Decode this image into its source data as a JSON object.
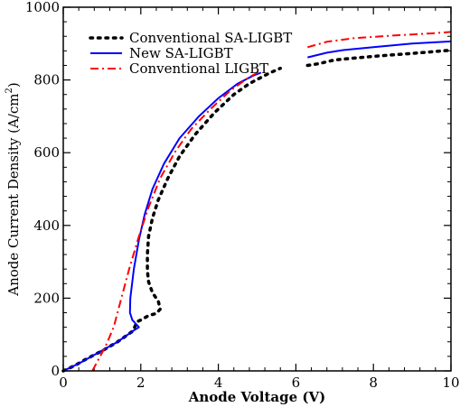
{
  "chart_data": {
    "type": "line",
    "title": "",
    "xlabel": "Anode Voltage (V)",
    "ylabel": "Anode Current Density (A/cm",
    "ylabel_sup": "2",
    "ylabel_close": ")",
    "xlim": [
      0,
      10
    ],
    "ylim": [
      0,
      1000
    ],
    "xticks": [
      0,
      2,
      4,
      6,
      8,
      10
    ],
    "yticks": [
      0,
      200,
      400,
      600,
      800,
      1000
    ],
    "grid": false,
    "legend_position": "top-left",
    "series": [
      {
        "name": "Conventional SA-LIGBT",
        "color": "#000000",
        "style": "dotted",
        "points": [
          [
            0,
            0
          ],
          [
            0.3,
            15
          ],
          [
            0.6,
            33
          ],
          [
            1.0,
            55
          ],
          [
            1.4,
            80
          ],
          [
            1.8,
            110
          ],
          [
            1.9,
            135
          ],
          [
            2.0,
            140
          ],
          [
            2.2,
            152
          ],
          [
            2.4,
            158
          ],
          [
            2.5,
            170
          ],
          [
            2.45,
            192
          ],
          [
            2.3,
            215
          ],
          [
            2.2,
            245
          ],
          [
            2.17,
            275
          ],
          [
            2.17,
            320
          ],
          [
            2.2,
            370
          ],
          [
            2.3,
            420
          ],
          [
            2.45,
            470
          ],
          [
            2.7,
            530
          ],
          [
            3.0,
            590
          ],
          [
            3.4,
            650
          ],
          [
            3.9,
            710
          ],
          [
            4.4,
            760
          ],
          [
            4.8,
            790
          ],
          [
            5.3,
            818
          ],
          [
            5.6,
            832
          ]
        ],
        "points2": [
          [
            6.3,
            840
          ],
          [
            6.6,
            845
          ],
          [
            7.0,
            855
          ],
          [
            8.0,
            865
          ],
          [
            9.0,
            873
          ],
          [
            10.0,
            882
          ]
        ]
      },
      {
        "name": "New SA-LIGBT",
        "color": "#0000ff",
        "style": "solid",
        "points": [
          [
            0,
            0
          ],
          [
            0.4,
            20
          ],
          [
            0.9,
            50
          ],
          [
            1.4,
            80
          ],
          [
            1.8,
            110
          ],
          [
            1.95,
            120
          ],
          [
            1.78,
            140
          ],
          [
            1.72,
            160
          ],
          [
            1.73,
            200
          ],
          [
            1.82,
            280
          ],
          [
            1.95,
            360
          ],
          [
            2.1,
            430
          ],
          [
            2.3,
            500
          ],
          [
            2.6,
            570
          ],
          [
            3.0,
            640
          ],
          [
            3.5,
            700
          ],
          [
            4.0,
            750
          ],
          [
            4.5,
            790
          ],
          [
            4.9,
            812
          ],
          [
            5.1,
            820
          ]
        ],
        "points2": [
          [
            6.3,
            862
          ],
          [
            6.8,
            875
          ],
          [
            7.2,
            882
          ],
          [
            8.0,
            890
          ],
          [
            9.0,
            900
          ],
          [
            10.0,
            906
          ]
        ]
      },
      {
        "name": "Conventional LIGBT",
        "color": "#ff0000",
        "style": "dashdot",
        "points": [
          [
            0.75,
            0
          ],
          [
            0.85,
            20
          ],
          [
            0.95,
            40
          ],
          [
            1.1,
            70
          ],
          [
            1.3,
            120
          ],
          [
            1.5,
            200
          ],
          [
            1.7,
            280
          ],
          [
            1.95,
            370
          ],
          [
            2.2,
            450
          ],
          [
            2.5,
            530
          ],
          [
            2.9,
            605
          ],
          [
            3.3,
            665
          ],
          [
            3.8,
            720
          ],
          [
            4.3,
            770
          ],
          [
            4.8,
            808
          ],
          [
            5.1,
            825
          ]
        ],
        "points2": [
          [
            6.3,
            890
          ],
          [
            6.8,
            905
          ],
          [
            7.5,
            915
          ],
          [
            8.5,
            922
          ],
          [
            9.5,
            928
          ],
          [
            10.0,
            932
          ]
        ]
      }
    ]
  }
}
